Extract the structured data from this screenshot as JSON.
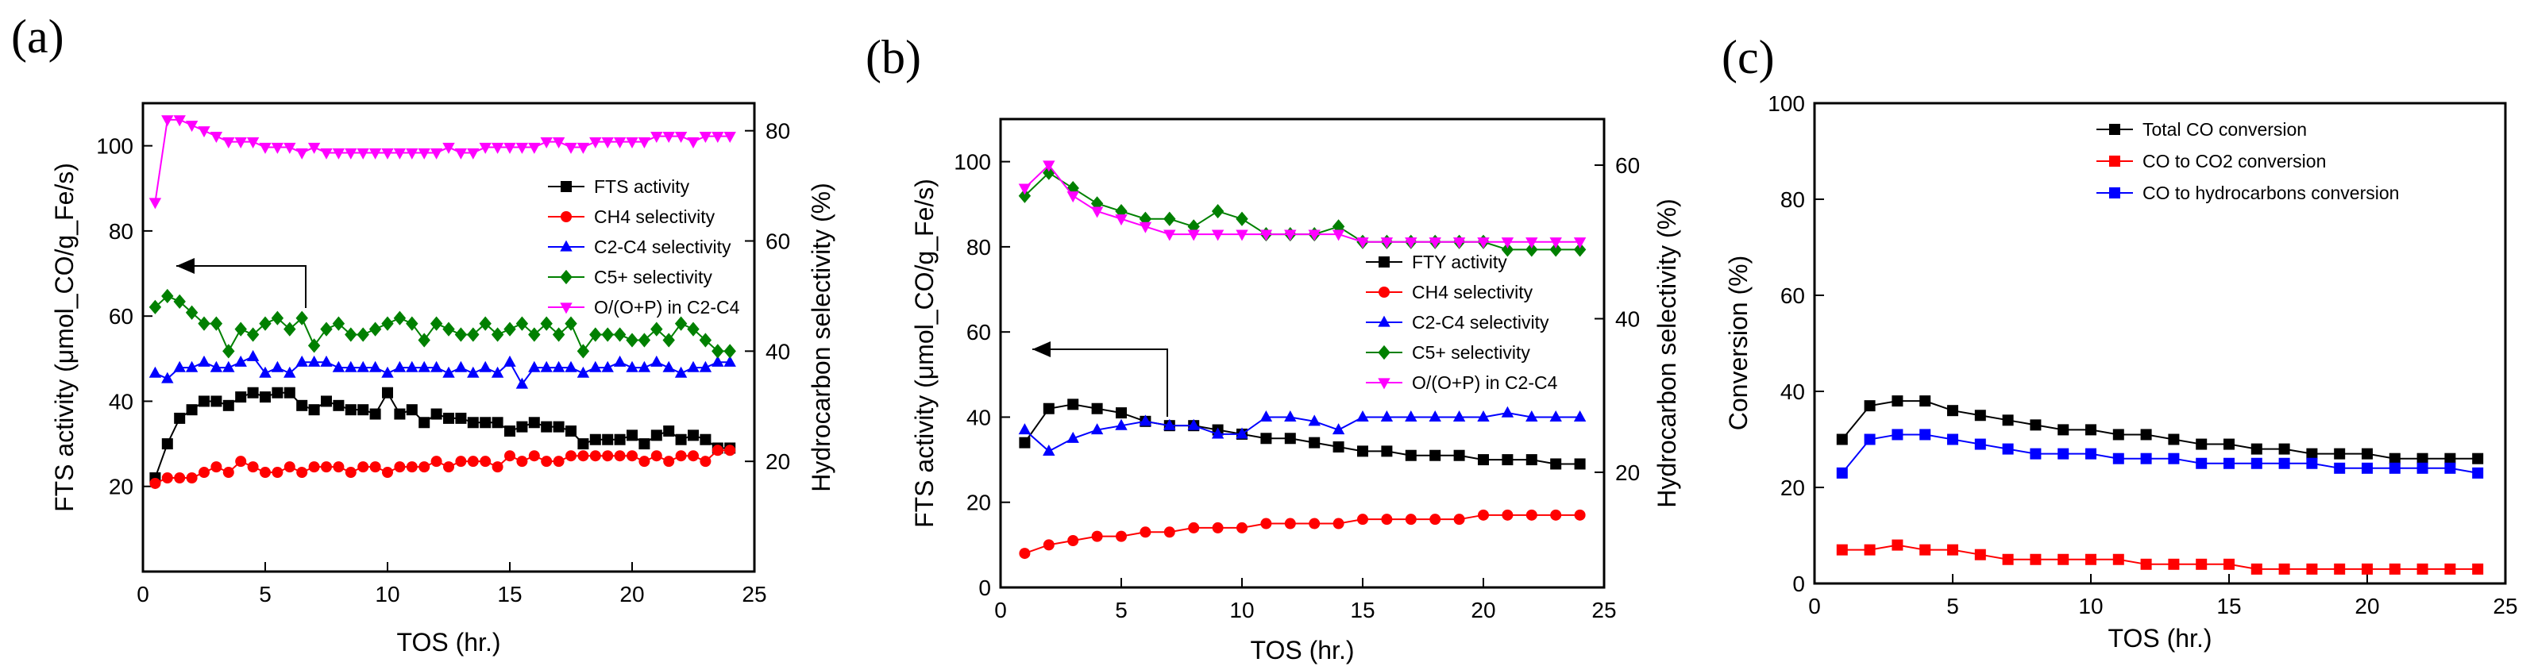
{
  "panels": [
    {
      "label": "(a)",
      "xlabel": "TOS (hr.)",
      "ylabel_left": "FTS activity (μmol_CO/g_Fe/s)",
      "ylabel_right": "Hydrocarbon selectivity (%)",
      "xticks": [
        "0",
        "5",
        "10",
        "15",
        "20",
        "25"
      ],
      "yticks_left": [
        "20",
        "40",
        "60",
        "80",
        "100"
      ],
      "yticks_right": [
        "20",
        "40",
        "60",
        "80"
      ]
    },
    {
      "label": "(b)",
      "xlabel": "TOS (hr.)",
      "ylabel_left": "FTS activity (μmol_CO/g_Fe/s)",
      "ylabel_right": "Hydrocarbon selectivity (%)",
      "xticks": [
        "0",
        "5",
        "10",
        "15",
        "20",
        "25"
      ],
      "yticks_left": [
        "0",
        "20",
        "40",
        "60",
        "80",
        "100"
      ],
      "yticks_right": [
        "20",
        "40",
        "60"
      ]
    },
    {
      "label": "(c)",
      "xlabel": "TOS (hr.)",
      "ylabel_left": "Conversion (%)",
      "xticks": [
        "0",
        "5",
        "10",
        "15",
        "20",
        "25"
      ],
      "yticks_left": [
        "0",
        "20",
        "40",
        "60",
        "80",
        "100"
      ]
    }
  ],
  "chart_data": [
    {
      "type": "scatter",
      "panel": "a",
      "xlim": [
        0,
        25
      ],
      "ylim_left": [
        0,
        110
      ],
      "ylim_right": [
        0,
        85
      ],
      "series": [
        {
          "name": "FTS activity",
          "marker": "square",
          "color": "#000000",
          "axis": "left",
          "x": [
            0.5,
            1,
            1.5,
            2,
            2.5,
            3,
            3.5,
            4,
            4.5,
            5,
            5.5,
            6,
            6.5,
            7,
            7.5,
            8,
            8.5,
            9,
            9.5,
            10,
            10.5,
            11,
            11.5,
            12,
            12.5,
            13,
            13.5,
            14,
            14.5,
            15,
            15.5,
            16,
            16.5,
            17,
            17.5,
            18,
            18.5,
            19,
            19.5,
            20,
            20.5,
            21,
            21.5,
            22,
            22.5,
            23,
            23.5,
            24
          ],
          "y": [
            22,
            30,
            36,
            38,
            40,
            40,
            39,
            41,
            42,
            41,
            42,
            42,
            39,
            38,
            40,
            39,
            38,
            38,
            37,
            42,
            37,
            38,
            35,
            37,
            36,
            36,
            35,
            35,
            35,
            33,
            34,
            35,
            34,
            34,
            33,
            30,
            31,
            31,
            31,
            32,
            30,
            32,
            33,
            31,
            32,
            31,
            29,
            29
          ]
        },
        {
          "name": "CH4 selectivity",
          "marker": "circle",
          "color": "#ff0000",
          "axis": "right",
          "x": [
            0.5,
            1,
            1.5,
            2,
            2.5,
            3,
            3.5,
            4,
            4.5,
            5,
            5.5,
            6,
            6.5,
            7,
            7.5,
            8,
            8.5,
            9,
            9.5,
            10,
            10.5,
            11,
            11.5,
            12,
            12.5,
            13,
            13.5,
            14,
            14.5,
            15,
            15.5,
            16,
            16.5,
            17,
            17.5,
            18,
            18.5,
            19,
            19.5,
            20,
            20.5,
            21,
            21.5,
            22,
            22.5,
            23,
            23.5,
            24
          ],
          "y": [
            16,
            17,
            17,
            17,
            18,
            19,
            18,
            20,
            19,
            18,
            18,
            19,
            18,
            19,
            19,
            19,
            18,
            19,
            19,
            18,
            19,
            19,
            19,
            20,
            19,
            20,
            20,
            20,
            19,
            21,
            20,
            21,
            20,
            20,
            21,
            21,
            21,
            21,
            21,
            21,
            20,
            21,
            20,
            21,
            21,
            20,
            22,
            22
          ]
        },
        {
          "name": "C2-C4 selectivity",
          "marker": "triangle",
          "color": "#0000ff",
          "axis": "right",
          "x": [
            0.5,
            1,
            1.5,
            2,
            2.5,
            3,
            3.5,
            4,
            4.5,
            5,
            5.5,
            6,
            6.5,
            7,
            7.5,
            8,
            8.5,
            9,
            9.5,
            10,
            10.5,
            11,
            11.5,
            12,
            12.5,
            13,
            13.5,
            14,
            14.5,
            15,
            15.5,
            16,
            16.5,
            17,
            17.5,
            18,
            18.5,
            19,
            19.5,
            20,
            20.5,
            21,
            21.5,
            22,
            22.5,
            23,
            23.5,
            24
          ],
          "y": [
            36,
            35,
            37,
            37,
            38,
            37,
            37,
            38,
            39,
            36,
            37,
            36,
            38,
            38,
            38,
            37,
            37,
            37,
            37,
            36,
            37,
            37,
            37,
            37,
            36,
            37,
            36,
            37,
            36,
            38,
            34,
            37,
            37,
            37,
            37,
            36,
            37,
            37,
            38,
            37,
            37,
            38,
            37,
            36,
            37,
            37,
            38,
            38
          ]
        },
        {
          "name": "C5+ selectivity",
          "marker": "diamond",
          "color": "#008000",
          "axis": "right",
          "x": [
            0.5,
            1,
            1.5,
            2,
            2.5,
            3,
            3.5,
            4,
            4.5,
            5,
            5.5,
            6,
            6.5,
            7,
            7.5,
            8,
            8.5,
            9,
            9.5,
            10,
            10.5,
            11,
            11.5,
            12,
            12.5,
            13,
            13.5,
            14,
            14.5,
            15,
            15.5,
            16,
            16.5,
            17,
            17.5,
            18,
            18.5,
            19,
            19.5,
            20,
            20.5,
            21,
            21.5,
            22,
            22.5,
            23,
            23.5,
            24
          ],
          "y": [
            48,
            50,
            49,
            47,
            45,
            45,
            40,
            44,
            43,
            45,
            46,
            44,
            46,
            41,
            44,
            45,
            43,
            43,
            44,
            45,
            46,
            45,
            42,
            45,
            44,
            43,
            43,
            45,
            43,
            44,
            45,
            43,
            45,
            43,
            45,
            40,
            43,
            43,
            43,
            42,
            42,
            44,
            42,
            45,
            44,
            42,
            40,
            40
          ]
        },
        {
          "name": "O/(O+P) in C2-C4",
          "marker": "triangle-down",
          "color": "#ff00ff",
          "axis": "right",
          "x": [
            0.5,
            1,
            1.5,
            2,
            2.5,
            3,
            3.5,
            4,
            4.5,
            5,
            5.5,
            6,
            6.5,
            7,
            7.5,
            8,
            8.5,
            9,
            9.5,
            10,
            10.5,
            11,
            11.5,
            12,
            12.5,
            13,
            13.5,
            14,
            14.5,
            15,
            15.5,
            16,
            16.5,
            17,
            17.5,
            18,
            18.5,
            19,
            19.5,
            20,
            20.5,
            21,
            21.5,
            22,
            22.5,
            23,
            23.5,
            24
          ],
          "y": [
            67,
            82,
            82,
            81,
            80,
            79,
            78,
            78,
            78,
            77,
            77,
            77,
            76,
            77,
            76,
            76,
            76,
            76,
            76,
            76,
            76,
            76,
            76,
            76,
            77,
            76,
            76,
            77,
            77,
            77,
            77,
            77,
            78,
            78,
            77,
            77,
            78,
            78,
            78,
            78,
            78,
            79,
            79,
            79,
            78,
            79,
            79,
            79
          ]
        }
      ],
      "annotation": "arrow pointing to left axis"
    },
    {
      "type": "scatter",
      "panel": "b",
      "xlim": [
        0,
        25
      ],
      "ylim_left": [
        0,
        110
      ],
      "ylim_right": [
        5,
        66
      ],
      "series": [
        {
          "name": "FTY activity",
          "marker": "square",
          "color": "#000000",
          "axis": "left",
          "x": [
            1,
            2,
            3,
            4,
            5,
            6,
            7,
            8,
            9,
            10,
            11,
            12,
            13,
            14,
            15,
            16,
            17,
            18,
            19,
            20,
            21,
            22,
            23,
            24
          ],
          "y": [
            34,
            42,
            43,
            42,
            41,
            39,
            38,
            38,
            37,
            36,
            35,
            35,
            34,
            33,
            32,
            32,
            31,
            31,
            31,
            30,
            30,
            30,
            29,
            29
          ]
        },
        {
          "name": "CH4 selectivity",
          "marker": "circle",
          "color": "#ff0000",
          "axis": "left",
          "x": [
            1,
            2,
            3,
            4,
            5,
            6,
            7,
            8,
            9,
            10,
            11,
            12,
            13,
            14,
            15,
            16,
            17,
            18,
            19,
            20,
            21,
            22,
            23,
            24
          ],
          "y": [
            8,
            10,
            11,
            12,
            12,
            13,
            13,
            14,
            14,
            14,
            15,
            15,
            15,
            15,
            16,
            16,
            16,
            16,
            16,
            17,
            17,
            17,
            17,
            17
          ]
        },
        {
          "name": "C2-C4 selectivity",
          "marker": "triangle",
          "color": "#0000ff",
          "axis": "left",
          "x": [
            1,
            2,
            3,
            4,
            5,
            6,
            7,
            8,
            9,
            10,
            11,
            12,
            13,
            14,
            15,
            16,
            17,
            18,
            19,
            20,
            21,
            22,
            23,
            24
          ],
          "y": [
            37,
            32,
            35,
            37,
            38,
            39,
            38,
            38,
            36,
            36,
            40,
            40,
            39,
            37,
            40,
            40,
            40,
            40,
            40,
            40,
            41,
            40,
            40,
            40
          ]
        },
        {
          "name": "C5+ selectivity",
          "marker": "diamond",
          "color": "#008000",
          "axis": "right",
          "x": [
            1,
            2,
            3,
            4,
            5,
            6,
            7,
            8,
            9,
            10,
            11,
            12,
            13,
            14,
            15,
            16,
            17,
            18,
            19,
            20,
            21,
            22,
            23,
            24
          ],
          "y": [
            56,
            59,
            57,
            55,
            54,
            53,
            53,
            52,
            54,
            53,
            51,
            51,
            51,
            52,
            50,
            50,
            50,
            50,
            50,
            50,
            49,
            49,
            49,
            49
          ]
        },
        {
          "name": "O/(O+P) in C2-C4",
          "marker": "triangle-down",
          "color": "#ff00ff",
          "axis": "right",
          "x": [
            1,
            2,
            3,
            4,
            5,
            6,
            7,
            8,
            9,
            10,
            11,
            12,
            13,
            14,
            15,
            16,
            17,
            18,
            19,
            20,
            21,
            22,
            23,
            24
          ],
          "y": [
            57,
            60,
            56,
            54,
            53,
            52,
            51,
            51,
            51,
            51,
            51,
            51,
            51,
            51,
            50,
            50,
            50,
            50,
            50,
            50,
            50,
            50,
            50,
            50
          ]
        }
      ],
      "annotation": "arrow pointing to left axis"
    },
    {
      "type": "line",
      "panel": "c",
      "xlim": [
        0,
        25
      ],
      "ylim": [
        0,
        100
      ],
      "series": [
        {
          "name": "Total CO conversion",
          "marker": "square",
          "color": "#000000",
          "x": [
            1,
            2,
            3,
            4,
            5,
            6,
            7,
            8,
            9,
            10,
            11,
            12,
            13,
            14,
            15,
            16,
            17,
            18,
            19,
            20,
            21,
            22,
            23,
            24
          ],
          "y": [
            30,
            37,
            38,
            38,
            36,
            35,
            34,
            33,
            32,
            32,
            31,
            31,
            30,
            29,
            29,
            28,
            28,
            27,
            27,
            27,
            26,
            26,
            26,
            26
          ]
        },
        {
          "name": "CO to CO2 conversion",
          "marker": "square",
          "color": "#ff0000",
          "x": [
            1,
            2,
            3,
            4,
            5,
            6,
            7,
            8,
            9,
            10,
            11,
            12,
            13,
            14,
            15,
            16,
            17,
            18,
            19,
            20,
            21,
            22,
            23,
            24
          ],
          "y": [
            7,
            7,
            8,
            7,
            7,
            6,
            5,
            5,
            5,
            5,
            5,
            4,
            4,
            4,
            4,
            3,
            3,
            3,
            3,
            3,
            3,
            3,
            3,
            3
          ]
        },
        {
          "name": "CO to hydrocarbons conversion",
          "marker": "square",
          "color": "#0000ff",
          "x": [
            1,
            2,
            3,
            4,
            5,
            6,
            7,
            8,
            9,
            10,
            11,
            12,
            13,
            14,
            15,
            16,
            17,
            18,
            19,
            20,
            21,
            22,
            23,
            24
          ],
          "y": [
            23,
            30,
            31,
            31,
            30,
            29,
            28,
            27,
            27,
            27,
            26,
            26,
            26,
            25,
            25,
            25,
            25,
            25,
            24,
            24,
            24,
            24,
            24,
            23
          ]
        }
      ]
    }
  ]
}
